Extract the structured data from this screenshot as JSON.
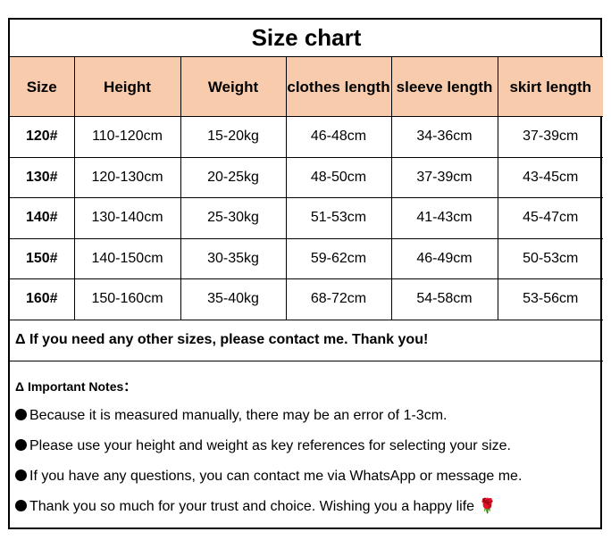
{
  "title": "Size chart",
  "headers": [
    "Size",
    "Height",
    "Weight",
    "clothes length",
    "sleeve length",
    "skirt length"
  ],
  "rows": [
    [
      "120#",
      "110-120cm",
      "15-20kg",
      "46-48cm",
      "34-36cm",
      "37-39cm"
    ],
    [
      "130#",
      "120-130cm",
      "20-25kg",
      "48-50cm",
      "37-39cm",
      "43-45cm"
    ],
    [
      "140#",
      "130-140cm",
      "25-30kg",
      "51-53cm",
      "41-43cm",
      "45-47cm"
    ],
    [
      "150#",
      "140-150cm",
      "30-35kg",
      "59-62cm",
      "46-49cm",
      "50-53cm"
    ],
    [
      "160#",
      "150-160cm",
      "35-40kg",
      "68-72cm",
      "54-58cm",
      "53-56cm"
    ]
  ],
  "contact": "Δ If you need any other sizes, please contact me. Thank you!",
  "notes_heading": "Δ Important Notes：",
  "notes": [
    "Because it is measured manually, there may be an error of 1-3cm.",
    "Please use your height and weight as key references for selecting your size.",
    "If you have any questions, you can contact me via WhatsApp or message me.",
    "Thank you so much for your trust and choice. Wishing you a happy life 🌹"
  ],
  "colors": {
    "header_bg": "#F8CBAD"
  }
}
